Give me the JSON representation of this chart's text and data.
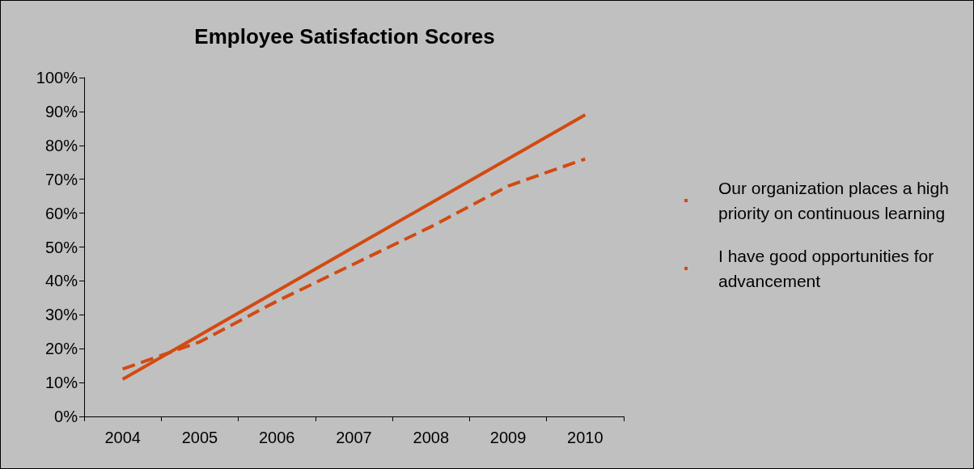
{
  "chart_data": {
    "type": "line",
    "title": "Employee Satisfaction Scores",
    "categories": [
      "2004",
      "2005",
      "2006",
      "2007",
      "2008",
      "2009",
      "2010"
    ],
    "series": [
      {
        "name": "Our organization places a high priority on continuous learning",
        "color": "#d24a12",
        "line_style": "dashed",
        "values": [
          14,
          22,
          34,
          45,
          56,
          68,
          76
        ]
      },
      {
        "name": "I have good opportunities for advancement",
        "color": "#d24a12",
        "line_style": "solid",
        "values": [
          11,
          24,
          37,
          50,
          63,
          76,
          89
        ]
      }
    ],
    "ylim": [
      0,
      100
    ],
    "yticks": [
      {
        "value": 0,
        "label": "0%"
      },
      {
        "value": 10,
        "label": "10%"
      },
      {
        "value": 20,
        "label": "20%"
      },
      {
        "value": 30,
        "label": "30%"
      },
      {
        "value": 40,
        "label": "40%"
      },
      {
        "value": 50,
        "label": "50%"
      },
      {
        "value": 60,
        "label": "60%"
      },
      {
        "value": 70,
        "label": "70%"
      },
      {
        "value": 80,
        "label": "80%"
      },
      {
        "value": 90,
        "label": "90%"
      },
      {
        "value": 100,
        "label": "100%"
      }
    ],
    "grid": false,
    "legend": "right",
    "marker": "none"
  }
}
